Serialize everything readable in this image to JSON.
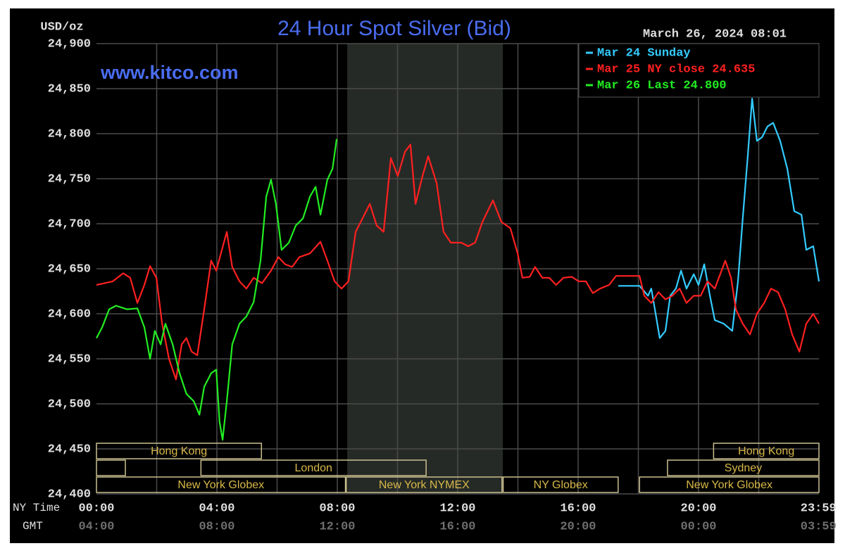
{
  "chart_data": {
    "type": "line",
    "title": "24 Hour Spot Silver (Bid)",
    "y_label": "USD/oz",
    "date_label": "March 26, 2024 08:01",
    "watermark": "www.kitco.com",
    "x_row_label": "NY Time",
    "x2_row_label": "GMT",
    "xlim": [
      0,
      24
    ],
    "ylim": [
      24.4,
      24.9
    ],
    "yticks": [
      {
        "value": 24.4,
        "label": "24,400"
      },
      {
        "value": 24.45,
        "label": "24,450"
      },
      {
        "value": 24.5,
        "label": "24,500"
      },
      {
        "value": 24.55,
        "label": "24,550"
      },
      {
        "value": 24.6,
        "label": "24,600"
      },
      {
        "value": 24.65,
        "label": "24,650"
      },
      {
        "value": 24.7,
        "label": "24,700"
      },
      {
        "value": 24.75,
        "label": "24,750"
      },
      {
        "value": 24.8,
        "label": "24,800"
      },
      {
        "value": 24.85,
        "label": "24,850"
      },
      {
        "value": 24.9,
        "label": "24,900"
      }
    ],
    "xticks": [
      {
        "value": 0,
        "label": "00:00"
      },
      {
        "value": 4,
        "label": "04:00"
      },
      {
        "value": 8,
        "label": "08:00"
      },
      {
        "value": 12,
        "label": "12:00"
      },
      {
        "value": 16,
        "label": "16:00"
      },
      {
        "value": 20,
        "label": "20:00"
      },
      {
        "value": 23.983,
        "label": "23:59"
      }
    ],
    "gmt_labels": [
      "04:00",
      "08:00",
      "12:00",
      "16:00",
      "20:00",
      "00:00",
      "03:59"
    ],
    "xgrid": [
      2,
      4,
      6,
      8,
      10,
      12,
      14,
      16,
      18,
      20,
      22
    ],
    "grid": true,
    "shaded_range": [
      8.33,
      13.5
    ],
    "legend": "top-right",
    "series": [
      {
        "name": "Mar 24 Sunday",
        "color": "#33ccff",
        "x": [
          17.33,
          18.04,
          18.32,
          18.43,
          18.55,
          18.71,
          18.9,
          19.06,
          19.25,
          19.42,
          19.6,
          19.84,
          20.0,
          20.19,
          20.38,
          20.54,
          20.84,
          21.12,
          21.31,
          21.47,
          21.64,
          21.78,
          21.94,
          22.11,
          22.29,
          22.48,
          22.71,
          22.95,
          23.18,
          23.42,
          23.58,
          23.81,
          24.0
        ],
        "values": [
          24.631,
          24.631,
          24.62,
          24.628,
          24.605,
          24.573,
          24.581,
          24.62,
          24.628,
          24.648,
          24.628,
          24.644,
          24.632,
          24.655,
          24.62,
          24.593,
          24.589,
          24.581,
          24.636,
          24.706,
          24.777,
          24.839,
          24.792,
          24.796,
          24.808,
          24.812,
          24.792,
          24.761,
          24.714,
          24.71,
          24.671,
          24.675,
          24.636
        ]
      },
      {
        "name": "Mar 25 NY close 24.635",
        "color": "#ff2020",
        "x": [
          0,
          0.54,
          0.89,
          1.12,
          1.36,
          1.59,
          1.78,
          1.99,
          2.18,
          2.41,
          2.64,
          2.83,
          2.99,
          3.16,
          3.35,
          3.58,
          3.81,
          3.98,
          4.33,
          4.51,
          4.75,
          4.98,
          5.22,
          5.5,
          5.8,
          6.04,
          6.27,
          6.5,
          6.74,
          7.09,
          7.44,
          7.67,
          7.91,
          8.14,
          8.37,
          8.61,
          8.84,
          9.08,
          9.31,
          9.54,
          9.78,
          10.01,
          10.25,
          10.43,
          10.6,
          10.83,
          11.02,
          11.3,
          11.53,
          11.77,
          12.12,
          12.35,
          12.58,
          12.82,
          13.17,
          13.45,
          13.75,
          13.99,
          14.15,
          14.39,
          14.57,
          14.81,
          15.04,
          15.27,
          15.51,
          15.79,
          16.02,
          16.26,
          16.49,
          16.73,
          17.03,
          17.26,
          18.04,
          18.2,
          18.43,
          18.67,
          18.9,
          19.13,
          19.37,
          19.6,
          19.84,
          20.07,
          20.3,
          20.54,
          20.89,
          21.08,
          21.24,
          21.47,
          21.71,
          21.94,
          22.18,
          22.41,
          22.64,
          22.88,
          23.11,
          23.35,
          23.58,
          23.81,
          24.0
        ],
        "values": [
          24.632,
          24.636,
          24.645,
          24.64,
          24.612,
          24.632,
          24.653,
          24.64,
          24.589,
          24.55,
          24.527,
          24.566,
          24.573,
          24.558,
          24.554,
          24.605,
          24.659,
          24.648,
          24.691,
          24.652,
          24.636,
          24.628,
          24.64,
          24.634,
          24.648,
          24.663,
          24.655,
          24.652,
          24.663,
          24.667,
          24.68,
          24.659,
          24.636,
          24.628,
          24.636,
          24.691,
          24.706,
          24.722,
          24.698,
          24.691,
          24.773,
          24.753,
          24.78,
          24.788,
          24.722,
          24.753,
          24.775,
          24.745,
          24.691,
          24.679,
          24.679,
          24.675,
          24.679,
          24.702,
          24.726,
          24.702,
          24.695,
          24.667,
          24.64,
          24.641,
          24.652,
          24.64,
          24.64,
          24.632,
          24.64,
          24.641,
          24.636,
          24.636,
          24.623,
          24.628,
          24.632,
          24.642,
          24.642,
          24.62,
          24.612,
          24.624,
          24.616,
          24.62,
          24.628,
          24.612,
          24.62,
          24.62,
          24.636,
          24.628,
          24.659,
          24.64,
          24.605,
          24.589,
          24.577,
          24.6,
          24.612,
          24.628,
          24.624,
          24.605,
          24.577,
          24.558,
          24.589,
          24.6,
          24.589
        ]
      },
      {
        "name": "Mar 26 Last 24.800",
        "color": "#22ee22",
        "x": [
          0,
          0.19,
          0.42,
          0.65,
          1.01,
          1.36,
          1.59,
          1.78,
          1.94,
          2.13,
          2.29,
          2.53,
          2.76,
          2.99,
          3.23,
          3.42,
          3.58,
          3.81,
          3.98,
          4.09,
          4.19,
          4.33,
          4.51,
          4.75,
          4.98,
          5.22,
          5.45,
          5.64,
          5.8,
          5.96,
          6.15,
          6.39,
          6.62,
          6.86,
          7.09,
          7.28,
          7.44,
          7.67,
          7.84,
          7.98
        ],
        "values": [
          24.573,
          24.585,
          24.605,
          24.609,
          24.605,
          24.606,
          24.585,
          24.55,
          24.581,
          24.566,
          24.589,
          24.566,
          24.534,
          24.511,
          24.503,
          24.488,
          24.519,
          24.534,
          24.538,
          24.48,
          24.46,
          24.503,
          24.566,
          24.589,
          24.597,
          24.613,
          24.659,
          24.73,
          24.749,
          24.722,
          24.671,
          24.679,
          24.698,
          24.706,
          24.73,
          24.741,
          24.71,
          24.749,
          24.761,
          24.794
        ]
      }
    ],
    "sessions": [
      {
        "label": "Hong Kong",
        "start": 0,
        "end": 5.48,
        "row": 0
      },
      {
        "label": "Hong Kong",
        "start": 20.5,
        "end": 24,
        "row": 0
      },
      {
        "label": null,
        "start": 0,
        "end": 0.96,
        "row": 1
      },
      {
        "label": "London",
        "start": 3.47,
        "end": 10.95,
        "row": 1
      },
      {
        "label": "Sydney",
        "start": 18.97,
        "end": 24,
        "row": 1
      },
      {
        "label": "New York Globex",
        "start": 0,
        "end": 8.27,
        "row": 2
      },
      {
        "label": "New York NYMEX",
        "start": 8.3,
        "end": 13.47,
        "row": 2
      },
      {
        "label": "NY Globex",
        "start": 13.51,
        "end": 17.33,
        "row": 2
      },
      {
        "label": "New York Globex",
        "start": 18.04,
        "end": 24,
        "row": 2
      }
    ]
  }
}
